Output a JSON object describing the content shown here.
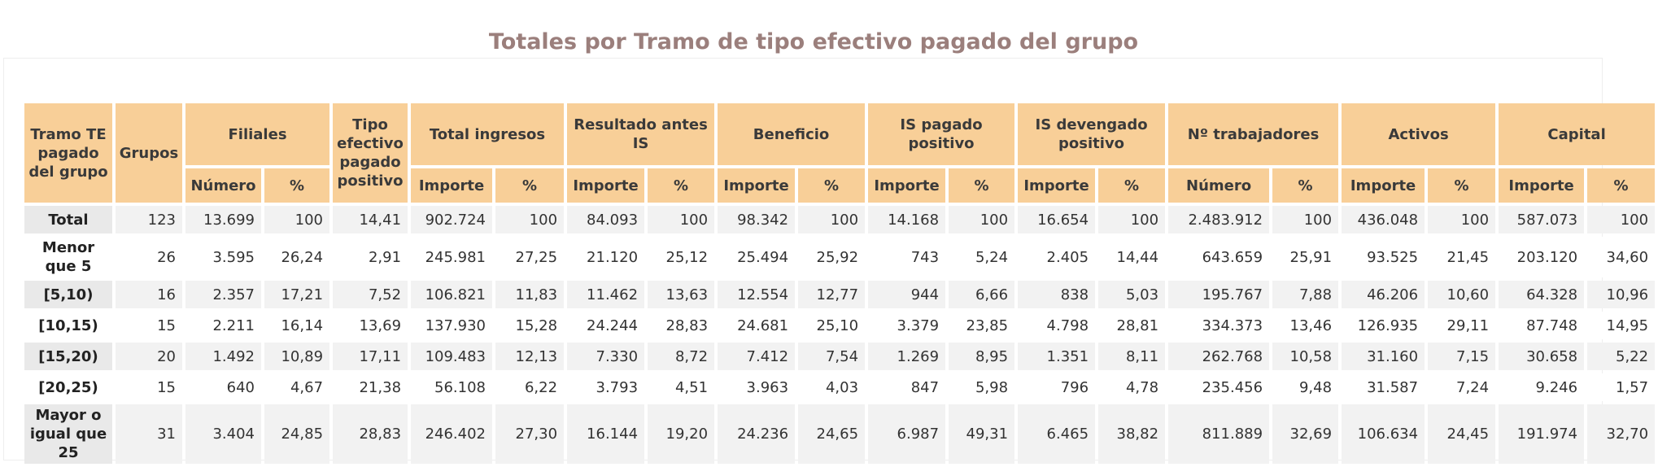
{
  "title": "Totales por Tramo de tipo efectivo pagado del grupo",
  "table": {
    "header_row1": [
      "Tramo TE pagado del grupo",
      "Grupos",
      "Filiales",
      "Tipo efectivo pagado positivo",
      "Total ingresos",
      "Resultado antes IS",
      "Beneficio",
      "IS pagado positivo",
      "IS devengado positivo",
      "Nº trabajadores",
      "Activos",
      "Capital"
    ],
    "header_row2": [
      "Número",
      "%",
      "Importe",
      "%",
      "Importe",
      "%",
      "Importe",
      "%",
      "Importe",
      "%",
      "Importe",
      "%",
      "Número",
      "%",
      "Importe",
      "%",
      "Importe",
      "%"
    ],
    "rows": [
      {
        "label": "Total",
        "cells": [
          "123",
          "13.699",
          "100",
          "14,41",
          "902.724",
          "100",
          "84.093",
          "100",
          "98.342",
          "100",
          "14.168",
          "100",
          "16.654",
          "100",
          "2.483.912",
          "100",
          "436.048",
          "100",
          "587.073",
          "100"
        ]
      },
      {
        "label": "Menor que 5",
        "cells": [
          "26",
          "3.595",
          "26,24",
          "2,91",
          "245.981",
          "27,25",
          "21.120",
          "25,12",
          "25.494",
          "25,92",
          "743",
          "5,24",
          "2.405",
          "14,44",
          "643.659",
          "25,91",
          "93.525",
          "21,45",
          "203.120",
          "34,60"
        ]
      },
      {
        "label": "[5,10)",
        "cells": [
          "16",
          "2.357",
          "17,21",
          "7,52",
          "106.821",
          "11,83",
          "11.462",
          "13,63",
          "12.554",
          "12,77",
          "944",
          "6,66",
          "838",
          "5,03",
          "195.767",
          "7,88",
          "46.206",
          "10,60",
          "64.328",
          "10,96"
        ]
      },
      {
        "label": "[10,15)",
        "cells": [
          "15",
          "2.211",
          "16,14",
          "13,69",
          "137.930",
          "15,28",
          "24.244",
          "28,83",
          "24.681",
          "25,10",
          "3.379",
          "23,85",
          "4.798",
          "28,81",
          "334.373",
          "13,46",
          "126.935",
          "29,11",
          "87.748",
          "14,95"
        ]
      },
      {
        "label": "[15,20)",
        "cells": [
          "20",
          "1.492",
          "10,89",
          "17,11",
          "109.483",
          "12,13",
          "7.330",
          "8,72",
          "7.412",
          "7,54",
          "1.269",
          "8,95",
          "1.351",
          "8,11",
          "262.768",
          "10,58",
          "31.160",
          "7,15",
          "30.658",
          "5,22"
        ]
      },
      {
        "label": "[20,25)",
        "cells": [
          "15",
          "640",
          "4,67",
          "21,38",
          "56.108",
          "6,22",
          "3.793",
          "4,51",
          "3.963",
          "4,03",
          "847",
          "5,98",
          "796",
          "4,78",
          "235.456",
          "9,48",
          "31.587",
          "7,24",
          "9.246",
          "1,57"
        ]
      },
      {
        "label": "Mayor o igual que 25",
        "cells": [
          "31",
          "3.404",
          "24,85",
          "28,83",
          "246.402",
          "27,30",
          "16.144",
          "19,20",
          "24.236",
          "24,65",
          "6.987",
          "49,31",
          "6.465",
          "38,82",
          "811.889",
          "32,69",
          "106.634",
          "24,45",
          "191.974",
          "32,70"
        ]
      }
    ]
  }
}
